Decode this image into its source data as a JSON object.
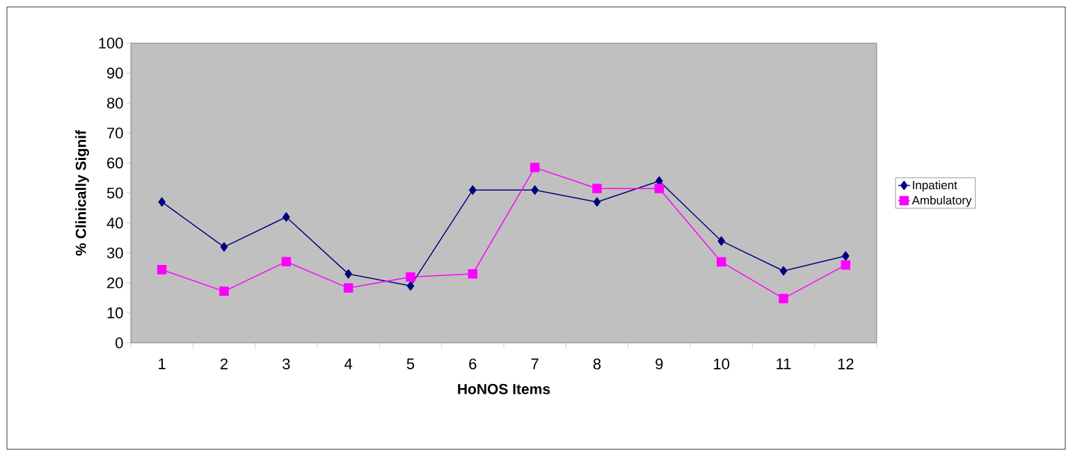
{
  "chart_data": {
    "type": "line",
    "xlabel": "HoNOS Items",
    "ylabel": "% Clinically Signif",
    "categories": [
      "1",
      "2",
      "3",
      "4",
      "5",
      "6",
      "7",
      "8",
      "9",
      "10",
      "11",
      "12"
    ],
    "series": [
      {
        "name": "Inpatient",
        "color": "#000080",
        "marker": "diamond",
        "values": [
          47,
          32,
          42,
          23,
          19,
          51,
          51,
          47,
          54,
          34,
          24,
          29
        ]
      },
      {
        "name": "Ambulatory",
        "color": "#ff00ff",
        "marker": "square",
        "values": [
          24.4,
          17.2,
          27.1,
          18.3,
          22,
          23,
          58.5,
          51.5,
          51.5,
          27,
          14.8,
          26
        ]
      }
    ],
    "ylim": [
      0,
      100
    ],
    "yticks": [
      0,
      10,
      20,
      30,
      40,
      50,
      60,
      70,
      80,
      90,
      100
    ],
    "grid": false,
    "legend": "right",
    "line_style": "solid"
  }
}
